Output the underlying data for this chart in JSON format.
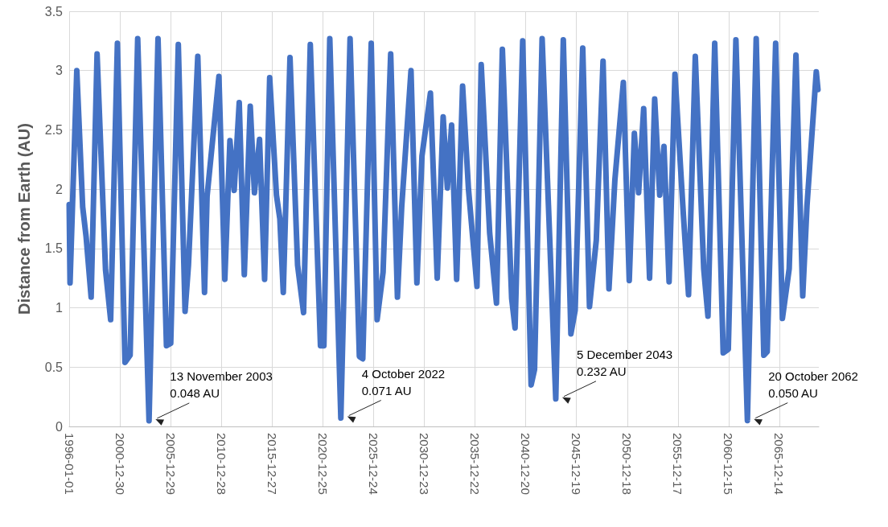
{
  "chart_data": {
    "type": "line",
    "ylabel": "Distance from Earth (AU)",
    "x": [
      "1996-01",
      "1996-02",
      "1996-10",
      "1997-05",
      "1997-09",
      "1998-03",
      "1998-10",
      "1999-08",
      "2000-02",
      "2000-10",
      "2001-07",
      "2002-01",
      "2002-10",
      "2003-11-13",
      "2004-10",
      "2005-08",
      "2006-01",
      "2006-10",
      "2007-06",
      "2007-10",
      "2008-09",
      "2009-05",
      "2009-08",
      "2010-10",
      "2011-05",
      "2011-11",
      "2012-04",
      "2012-10",
      "2013-04",
      "2013-11",
      "2014-04",
      "2014-10",
      "2015-04",
      "2015-10",
      "2016-06",
      "2016-10",
      "2017-02",
      "2017-10",
      "2018-07",
      "2019-02",
      "2019-10",
      "2020-10",
      "2021-02",
      "2021-09",
      "2022-10-04",
      "2023-09",
      "2024-08",
      "2024-12",
      "2025-10",
      "2026-05",
      "2026-12",
      "2027-09",
      "2028-05",
      "2028-10",
      "2029-09",
      "2030-04",
      "2030-10",
      "2031-08",
      "2032-04",
      "2032-11",
      "2033-04",
      "2033-09",
      "2034-03",
      "2034-10",
      "2035-05",
      "2036-03",
      "2036-08",
      "2037-06",
      "2038-02",
      "2038-09",
      "2039-08",
      "2039-12",
      "2040-09",
      "2041-07",
      "2041-11",
      "2042-08",
      "2043-12-05",
      "2044-09",
      "2045-06",
      "2045-11",
      "2046-08",
      "2047-04",
      "2047-12",
      "2048-08",
      "2049-03",
      "2049-10",
      "2050-08",
      "2051-03",
      "2051-09",
      "2052-02",
      "2052-08",
      "2053-03",
      "2053-09",
      "2054-03",
      "2054-08",
      "2055-02",
      "2055-09",
      "2056-07",
      "2057-01",
      "2057-09",
      "2058-07",
      "2058-12",
      "2059-08",
      "2060-06",
      "2060-12",
      "2061-09",
      "2062-10-20",
      "2063-09",
      "2064-06",
      "2064-10",
      "2065-08",
      "2066-04",
      "2066-12",
      "2067-08",
      "2068-04",
      "2068-09",
      "2069-08",
      "2069-10"
    ],
    "series": [
      {
        "color": "#4472c4",
        "values": [
          1.87,
          1.21,
          3.0,
          1.85,
          1.6,
          1.09,
          3.14,
          1.32,
          0.9,
          3.23,
          0.54,
          0.6,
          3.27,
          0.048,
          3.27,
          0.68,
          0.7,
          3.22,
          0.97,
          1.36,
          3.12,
          1.13,
          1.94,
          2.95,
          1.24,
          2.41,
          1.99,
          2.73,
          1.28,
          2.7,
          1.97,
          2.42,
          1.24,
          2.94,
          1.95,
          1.75,
          1.13,
          3.11,
          1.36,
          0.96,
          3.22,
          0.68,
          0.68,
          3.27,
          0.071,
          3.27,
          0.59,
          0.57,
          3.23,
          0.9,
          1.3,
          3.14,
          1.09,
          1.85,
          3.0,
          1.21,
          2.28,
          2.81,
          1.25,
          2.61,
          2.01,
          2.54,
          1.24,
          2.87,
          2.0,
          1.18,
          3.05,
          1.63,
          1.04,
          3.18,
          1.08,
          0.83,
          3.25,
          0.35,
          0.48,
          3.27,
          0.232,
          3.26,
          0.78,
          0.98,
          3.19,
          1.01,
          1.57,
          3.08,
          1.16,
          2.08,
          2.9,
          1.23,
          2.47,
          1.97,
          2.68,
          1.25,
          2.76,
          1.95,
          2.36,
          1.22,
          2.97,
          1.78,
          1.11,
          3.12,
          1.33,
          0.93,
          3.23,
          0.62,
          0.65,
          3.26,
          0.05,
          3.27,
          0.6,
          0.63,
          3.23,
          0.91,
          1.33,
          3.13,
          1.1,
          1.86,
          2.99,
          2.84
        ]
      }
    ],
    "xlim": [
      "1996-01-01",
      "2069-11-01"
    ],
    "xticks": [
      "1996-01-01",
      "2000-12-30",
      "2005-12-29",
      "2010-12-28",
      "2015-12-27",
      "2020-12-25",
      "2025-12-24",
      "2030-12-23",
      "2035-12-22",
      "2040-12-20",
      "2045-12-19",
      "2050-12-18",
      "2055-12-17",
      "2060-12-15",
      "2065-12-14"
    ],
    "ylim": [
      0,
      3.5
    ],
    "yticks": [
      0,
      0.5,
      1,
      1.5,
      2,
      2.5,
      3,
      3.5
    ],
    "grid": true,
    "line_style": "solid",
    "annotations": [
      {
        "text": "13 November 2003\n0.048 AU",
        "x": "2003-11-13",
        "y": 0.048
      },
      {
        "text": "4 October 2022\n0.071 AU",
        "x": "2022-10-04",
        "y": 0.071
      },
      {
        "text": "5 December 2043\n0.232 AU",
        "x": "2043-12-05",
        "y": 0.232
      },
      {
        "text": "20 October 2062\n0.050 AU",
        "x": "2062-10-20",
        "y": 0.05
      }
    ]
  }
}
